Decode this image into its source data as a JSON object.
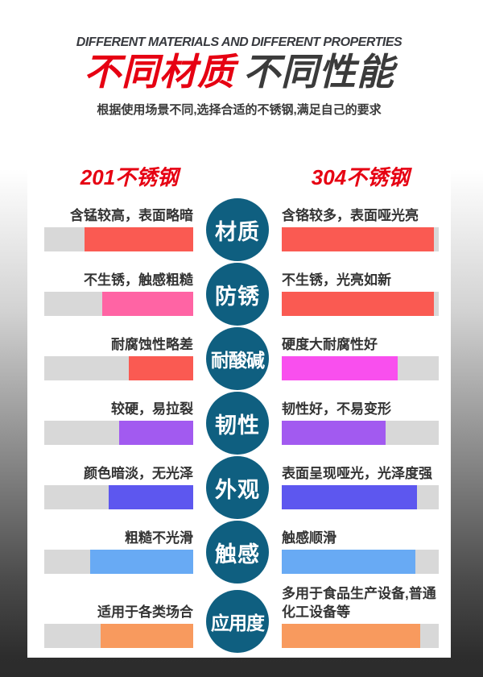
{
  "colors": {
    "accent_red": "#e60012",
    "title_dark": "#3b3b3b",
    "badge_teal": "#0f5f80",
    "bar_track_gray": "#d8d8d8",
    "page_bottom_gray": "#2d2d2d"
  },
  "header": {
    "en_title": "DIFFERENT MATERIALS AND DIFFERENT PROPERTIES",
    "cn_title_red": "不同材质",
    "cn_title_dark": "不同性能",
    "subtitle": "根据使用场景不同,选择合适的不锈钢,满足自己的要求"
  },
  "columns": {
    "left_header": "201不锈钢",
    "right_header": "304不锈钢"
  },
  "rows": [
    {
      "badge": "材质",
      "left": {
        "text": "含锰较高，表面略暗",
        "color": "#fa5a52",
        "fill_pct": 73
      },
      "right": {
        "text": "含铬较多，表面哑光亮",
        "color": "#fa5a52",
        "fill_pct": 97
      }
    },
    {
      "badge": "防锈",
      "left": {
        "text": "不生锈，触感粗糙",
        "color": "#ff64a4",
        "fill_pct": 61
      },
      "right": {
        "text": "不生锈，光亮如新",
        "color": "#fa5a52",
        "fill_pct": 97
      }
    },
    {
      "badge": "耐酸碱",
      "left": {
        "text": "耐腐蚀性略差",
        "color": "#fa5a52",
        "fill_pct": 43
      },
      "right": {
        "text": "硬度大耐腐性好",
        "color": "#f94fee",
        "fill_pct": 74
      }
    },
    {
      "badge": "韧性",
      "left": {
        "text": "较硬，易拉裂",
        "color": "#a25af0",
        "fill_pct": 50
      },
      "right": {
        "text": "韧性好，不易变形",
        "color": "#a25af0",
        "fill_pct": 66
      }
    },
    {
      "badge": "外观",
      "left": {
        "text": "颜色暗淡，无光泽",
        "color": "#5d57ef",
        "fill_pct": 57
      },
      "right": {
        "text": "表面呈现哑光，光泽度强",
        "color": "#5d57ef",
        "fill_pct": 86
      }
    },
    {
      "badge": "触感",
      "left": {
        "text": "粗糙不光滑",
        "color": "#68aaf4",
        "fill_pct": 69
      },
      "right": {
        "text": "触感顺滑",
        "color": "#68aaf4",
        "fill_pct": 85
      }
    },
    {
      "badge": "应用度",
      "tall": true,
      "left": {
        "text": "适用于各类场合",
        "color": "#f89a5e",
        "fill_pct": 62
      },
      "right": {
        "text": "多用于食品生产设备,普通\n化工设备等",
        "color": "#f89a5e",
        "fill_pct": 88
      }
    }
  ]
}
